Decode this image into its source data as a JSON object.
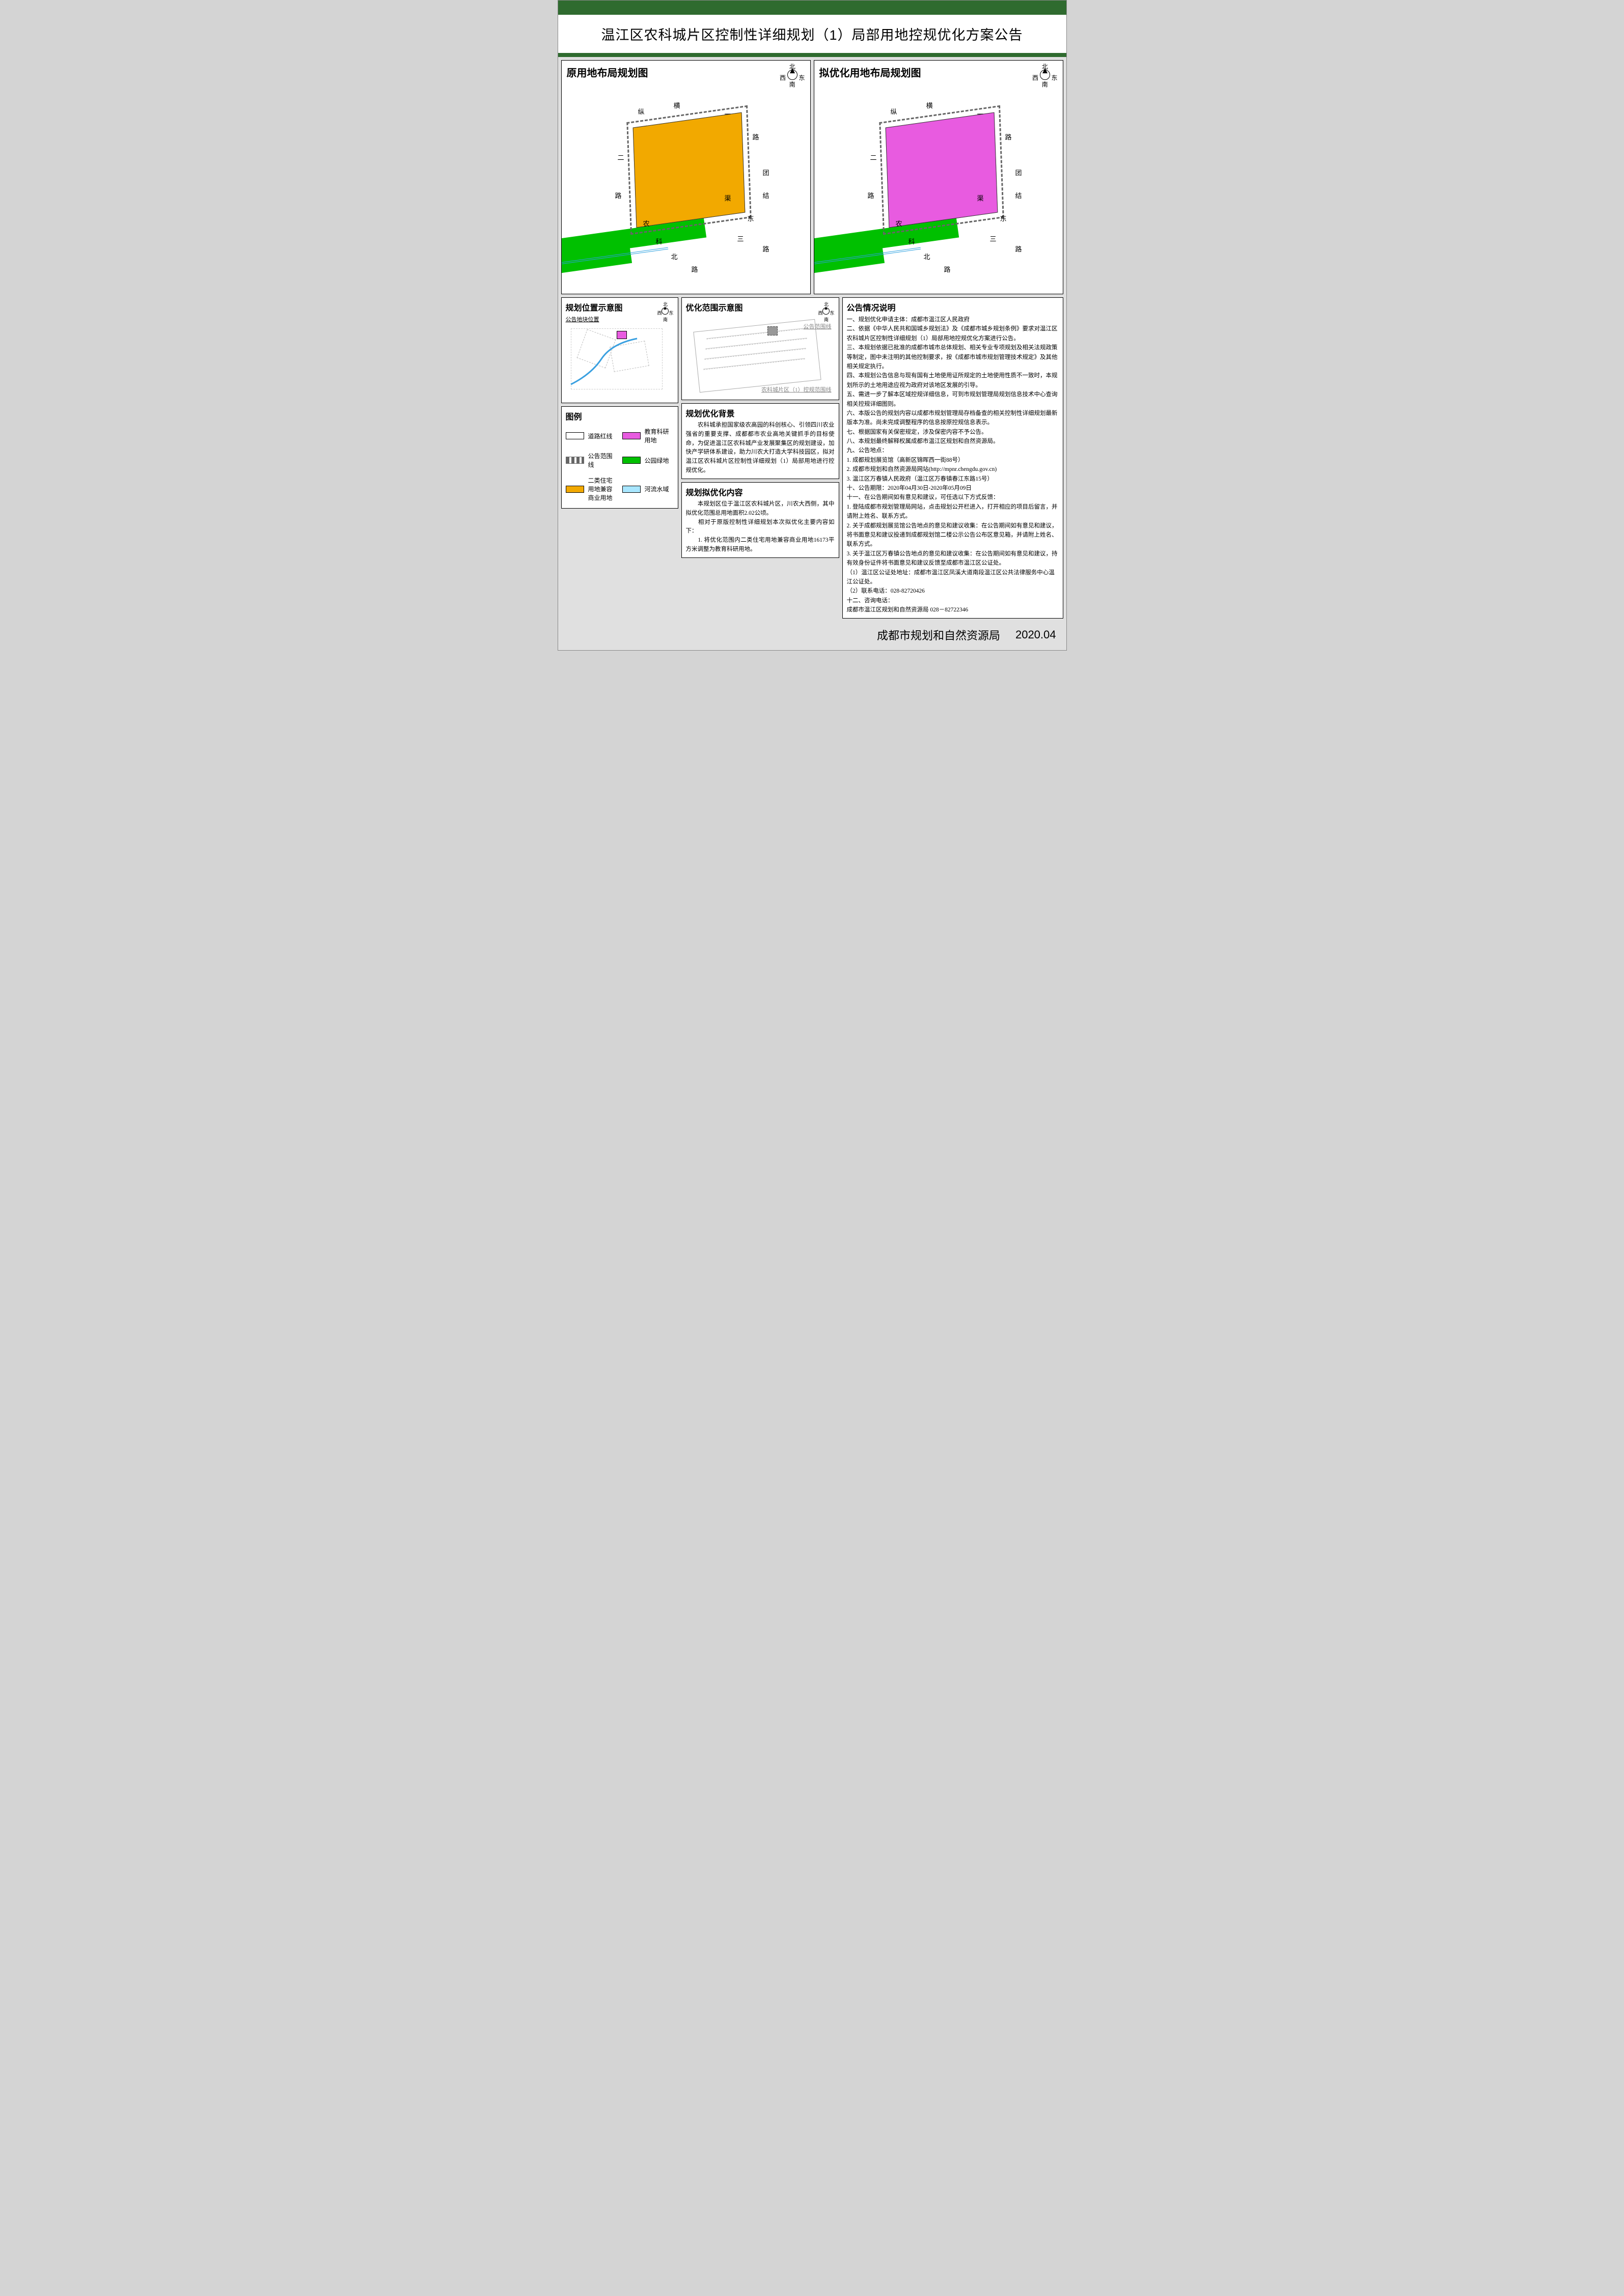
{
  "title": "温江区农科城片区控制性详细规划（1）局部用地控规优化方案公告",
  "map_left": {
    "title": "原用地布局规划图",
    "compass": {
      "n": "北",
      "e": "东",
      "s": "南",
      "w": "西"
    },
    "fill_color": "#f2a900",
    "roads": {
      "zong": "纵",
      "heng": "横",
      "yi": "一",
      "er": "二",
      "lu": "路",
      "tuan": "团",
      "jie": "结",
      "dong": "东",
      "san": "三",
      "nong": "农",
      "ke": "科",
      "bei": "北",
      "qu": "渠"
    }
  },
  "map_right": {
    "title": "拟优化用地布局规划图",
    "compass": {
      "n": "北",
      "e": "东",
      "s": "南",
      "w": "西"
    },
    "fill_color": "#e85be0",
    "roads": {
      "zong": "纵",
      "heng": "横",
      "yi": "一",
      "er": "二",
      "lu": "路",
      "tuan": "团",
      "jie": "结",
      "dong": "东",
      "san": "三",
      "nong": "农",
      "ke": "科",
      "bei": "北",
      "qu": "渠"
    }
  },
  "loc_panel": {
    "title": "规划位置示意图",
    "label": "公告地块位置"
  },
  "range_panel": {
    "title": "优化范围示意图",
    "label1": "公告范围线",
    "label2": "农科城片区（1）控规范围线"
  },
  "legend": {
    "title": "图例",
    "items": [
      {
        "cls": "swatch-road",
        "text": "道路红线"
      },
      {
        "cls": "swatch-edu",
        "text": "教育科研用地"
      },
      {
        "cls": "swatch-dash",
        "text": "公告范围线"
      },
      {
        "cls": "swatch-park",
        "text": "公园绿地"
      },
      {
        "cls": "swatch-resi",
        "text": "二类住宅用地兼容商业用地"
      },
      {
        "cls": "swatch-water",
        "text": "河流水域"
      }
    ]
  },
  "bg_panel": {
    "title": "规划优化背景",
    "text": "　　农科城承担国家级农高园的科创核心、引领四川农业强省的重要支撑、成都都市农业高地关键抓手的目标使命，为促进温江区农科城产业发展聚集区的规划建设，加快产学研体系建设，助力川农大打造大学科技园区，拟对温江区农科城片区控制性详细规划（1）局部用地进行控规优化。"
  },
  "content_panel": {
    "title": "规划拟优化内容",
    "p1": "　　本规划区位于温江区农科城片区，川农大西侧，其中拟优化范围总用地面积2.02公顷。",
    "p2": "　　相对于原版控制性详细规划本次拟优化主要内容如下：",
    "p3": "　　1. 将优化范围内二类住宅用地兼容商业用地16173平方米调整为教育科研用地。"
  },
  "notice_panel": {
    "title": "公告情况说明",
    "lines": [
      "一、规划优化申请主体：成都市温江区人民政府",
      "二、依据《中华人民共和国城乡规划法》及《成都市城乡规划条例》要求对温江区农科城片区控制性详细规划（1）局部用地控规优化方案进行公告。",
      "三、本规划依据已批准的成都市城市总体规划、相关专业专项规划及相关法规政策等制定，图中未注明的其他控制要求，按《成都市城市规划管理技术规定》及其他相关规定执行。",
      "四、本规划公告信息与现有国有土地使用证所规定的土地使用性质不一致时，本规划所示的土地用途应视为政府对该地区发展的引导。",
      "五、需进一步了解本区域控规详细信息，可到市规划管理局规划信息技术中心查询相关控规详细图则。",
      "六、本版公告的规划内容以成都市规划管理局存档备查的相关控制性详细规划最新版本为准。尚未完成调整程序的信息按原控规信息表示。",
      "七、根据国家有关保密规定，涉及保密内容不予公告。",
      "八、本规划最终解释权属成都市温江区规划和自然资源局。",
      "九、公告地点：",
      "1. 成都规划展览馆（高新区锦晖西一街88号）",
      "2. 成都市规划和自然资源局网站(http://mpnr.chengdu.gov.cn)",
      "3. 温江区万春镇人民政府（温江区万春镇春江东路15号）",
      "十、公告期限：2020年04月30日-2020年05月09日",
      "十一、在公告期间如有意见和建议，可任选以下方式反馈：",
      "1. 登陆成都市规划管理局网站，点击规划公开栏进入，打开相应的项目后留言，并请附上姓名、联系方式。",
      "2. 关于成都规划展览馆公告地点的意见和建议收集：在公告期间如有意见和建议，将书面意见和建议投递到成都规划馆二楼公示公告公布区意见箱，并请附上姓名、联系方式。",
      "3. 关于温江区万春镇公告地点的意见和建议收集：在公告期间如有意见和建议，持有效身份证件将书面意见和建议反馈至成都市温江区公证处。",
      "（1）温江区公证处地址：成都市温江区凤溪大道南段温江区公共法律服务中心温江公证处。",
      "（2）联系电话：028-82720426",
      "十二、咨询电话：",
      "成都市温江区规划和自然资源局  028－82722346"
    ]
  },
  "footer": {
    "org": "成都市规划和自然资源局",
    "date": "2020.04"
  }
}
